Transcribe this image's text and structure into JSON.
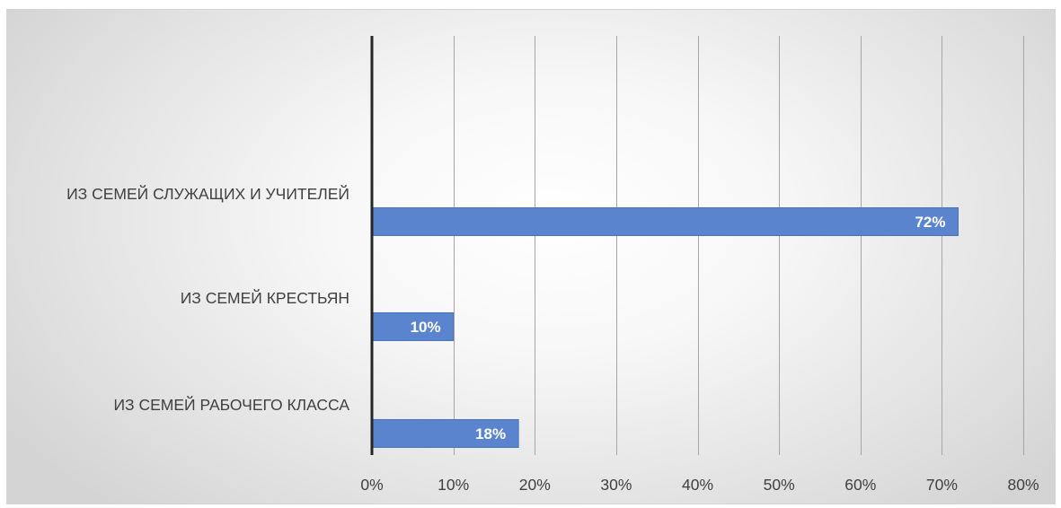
{
  "chart_data": {
    "type": "bar",
    "orientation": "horizontal",
    "categories": [
      "ИЗ СЕМЕЙ СЛУЖАЩИХ И УЧИТЕЛЕЙ",
      "ИЗ СЕМЕЙ КРЕСТЬЯН",
      "ИЗ СЕМЕЙ РАБОЧЕГО КЛАССА"
    ],
    "values": [
      72,
      10,
      18
    ],
    "data_labels": [
      "72%",
      "10%",
      "18%"
    ],
    "xlim": [
      0,
      80
    ],
    "x_ticks": [
      0,
      10,
      20,
      30,
      40,
      50,
      60,
      70,
      80
    ],
    "x_tick_labels": [
      "0%",
      "10%",
      "20%",
      "30%",
      "40%",
      "50%",
      "60%",
      "70%",
      "80%"
    ],
    "grid": "vertical",
    "legend": "none",
    "title": "",
    "xlabel": "",
    "ylabel": "",
    "colors": {
      "bar": "#5b84cf",
      "bar_edge": "#4a72bd",
      "axis": "#262626",
      "grid": "#a6a6a6",
      "text": "#404040",
      "data_label": "#ffffff"
    }
  }
}
